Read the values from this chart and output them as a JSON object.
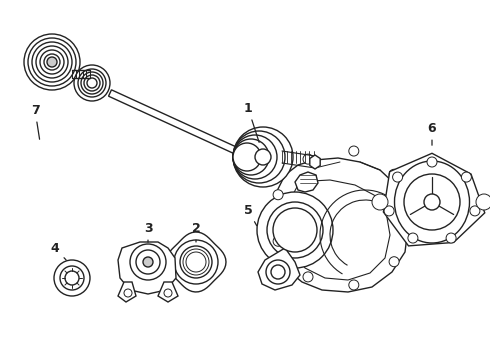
{
  "bg_color": "#ffffff",
  "line_color": "#222222",
  "lw": 1.0,
  "fig_w": 4.9,
  "fig_h": 3.6,
  "dpi": 100
}
